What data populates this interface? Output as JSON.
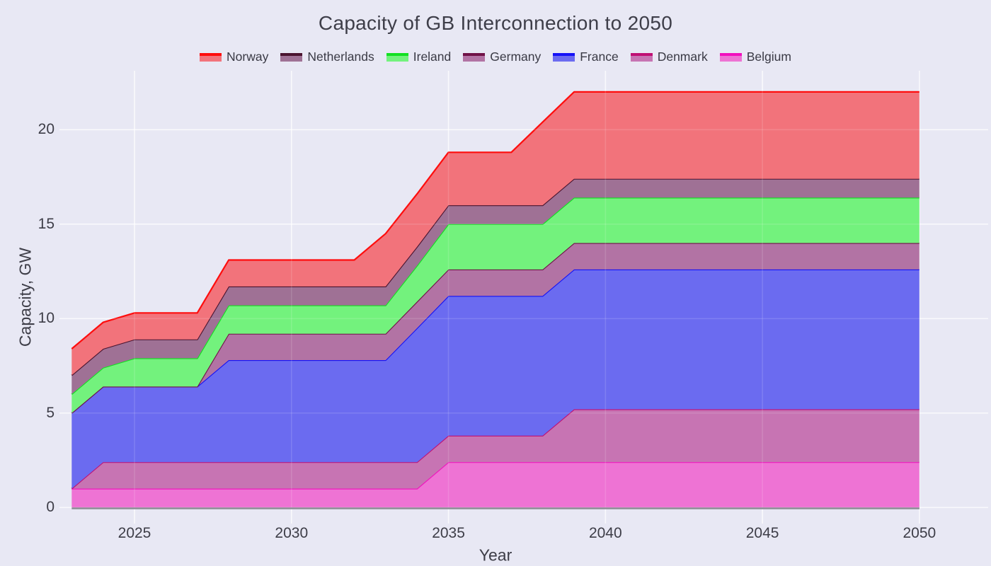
{
  "title": "Capacity of GB Interconnection to 2050",
  "colors": {
    "background": "#e8e8f4",
    "grid_under": "rgba(255,255,255,0.75)",
    "grid_over": "rgba(255,255,255,0.13)",
    "baseline": "#8b8b94",
    "title_text": "#3e3e49",
    "tick_text": "#3d3d47",
    "legend_text": "#3a3a45"
  },
  "axes": {
    "x": {
      "title": "Year",
      "ticks": [
        "2025",
        "2030",
        "2035",
        "2040",
        "2045",
        "2050"
      ],
      "tick_values": [
        2025,
        2030,
        2035,
        2040,
        2045,
        2050
      ]
    },
    "y": {
      "title": "Capacity, GW",
      "ticks": [
        "0",
        "5",
        "10",
        "15",
        "20"
      ],
      "tick_values": [
        0,
        5,
        10,
        15,
        20
      ]
    }
  },
  "chart_data": {
    "type": "area",
    "stacked": true,
    "title": "Capacity of GB Interconnection to 2050",
    "xlabel": "Year",
    "ylabel": "Capacity, GW",
    "grid": true,
    "legend_position": "top-center",
    "legend_order": [
      "Norway",
      "Netherlands",
      "Ireland",
      "Germany",
      "France",
      "Denmark",
      "Belgium"
    ],
    "x_range": [
      2022.61,
      2052.19
    ],
    "y_range": [
      -0.85,
      23.12
    ],
    "x": [
      2023,
      2024,
      2025,
      2026,
      2027,
      2028,
      2029,
      2030,
      2031,
      2032,
      2033,
      2034,
      2035,
      2036,
      2037,
      2038,
      2039,
      2040,
      2041,
      2042,
      2043,
      2044,
      2045,
      2046,
      2047,
      2048,
      2049,
      2050
    ],
    "series": [
      {
        "name": "Belgium",
        "fill": "#ee73d4",
        "line": "#f20fbe",
        "values": [
          1,
          1,
          1,
          1,
          1,
          1,
          1,
          1,
          1,
          1,
          1,
          1,
          2.4,
          2.4,
          2.4,
          2.4,
          2.4,
          2.4,
          2.4,
          2.4,
          2.4,
          2.4,
          2.4,
          2.4,
          2.4,
          2.4,
          2.4,
          2.4
        ]
      },
      {
        "name": "Denmark",
        "fill": "#c774b3",
        "line": "#c00f74",
        "values": [
          0,
          1.4,
          1.4,
          1.4,
          1.4,
          1.4,
          1.4,
          1.4,
          1.4,
          1.4,
          1.4,
          1.4,
          1.4,
          1.4,
          1.4,
          1.4,
          2.8,
          2.8,
          2.8,
          2.8,
          2.8,
          2.8,
          2.8,
          2.8,
          2.8,
          2.8,
          2.8,
          2.8
        ]
      },
      {
        "name": "France",
        "fill": "#6b6bf0",
        "line": "#1512f7",
        "values": [
          4,
          4,
          4,
          4,
          4,
          5.4,
          5.4,
          5.4,
          5.4,
          5.4,
          5.4,
          7.1,
          7.4,
          7.4,
          7.4,
          7.4,
          7.4,
          7.4,
          7.4,
          7.4,
          7.4,
          7.4,
          7.4,
          7.4,
          7.4,
          7.4,
          7.4,
          7.4
        ]
      },
      {
        "name": "Germany",
        "fill": "#b273a4",
        "line": "#701247",
        "values": [
          0,
          0,
          0,
          0,
          0,
          1.4,
          1.4,
          1.4,
          1.4,
          1.4,
          1.4,
          1.4,
          1.4,
          1.4,
          1.4,
          1.4,
          1.4,
          1.4,
          1.4,
          1.4,
          1.4,
          1.4,
          1.4,
          1.4,
          1.4,
          1.4,
          1.4,
          1.4
        ]
      },
      {
        "name": "Ireland",
        "fill": "#73f27d",
        "line": "#12e021",
        "values": [
          1,
          1,
          1.5,
          1.5,
          1.5,
          1.5,
          1.5,
          1.5,
          1.5,
          1.5,
          1.5,
          1.9,
          2.4,
          2.4,
          2.4,
          2.4,
          2.4,
          2.4,
          2.4,
          2.4,
          2.4,
          2.4,
          2.4,
          2.4,
          2.4,
          2.4,
          2.4,
          2.4
        ]
      },
      {
        "name": "Netherlands",
        "fill": "#9f7195",
        "line": "#4a142f",
        "values": [
          1,
          1,
          1,
          1,
          1,
          1,
          1,
          1,
          1,
          1,
          1,
          1,
          1,
          1,
          1,
          1,
          1,
          1,
          1,
          1,
          1,
          1,
          1,
          1,
          1,
          1,
          1,
          1
        ]
      },
      {
        "name": "Norway",
        "fill": "#f2737b",
        "line": "#fe0d0d",
        "values": [
          1.4,
          1.4,
          1.4,
          1.4,
          1.4,
          1.4,
          1.4,
          1.4,
          1.4,
          1.4,
          2.8,
          2.8,
          2.8,
          2.8,
          2.8,
          4.4,
          4.6,
          4.6,
          4.6,
          4.6,
          4.6,
          4.6,
          4.6,
          4.6,
          4.6,
          4.6,
          4.6,
          4.6
        ]
      }
    ]
  }
}
